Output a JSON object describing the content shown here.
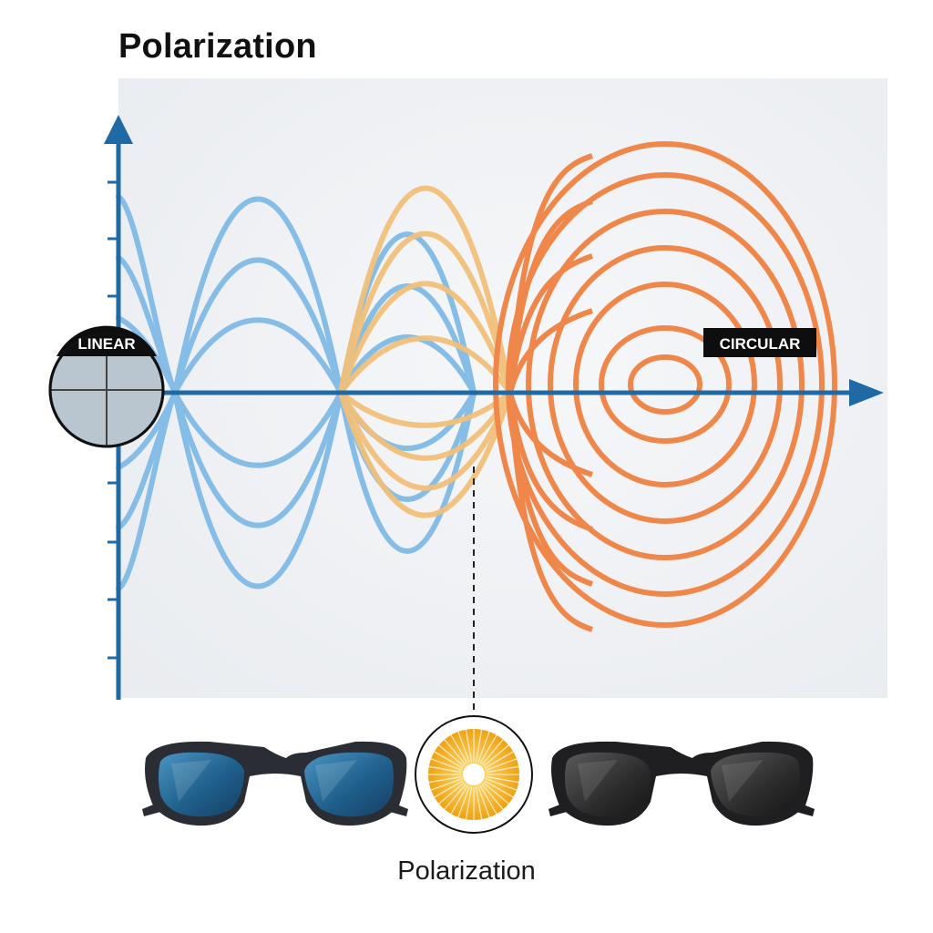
{
  "title": "Polarization",
  "labels": {
    "linear": "LINEAR",
    "circular": "CIRCULAR"
  },
  "caption": "Polarization",
  "colors": {
    "axis": "#1f6aa5",
    "linear_wave": "#86bde6",
    "transition_wave": "#f1c07a",
    "circular_wave": "#f0874a",
    "panel": "#eef0f3",
    "left_lens": "#2c6e96",
    "right_lens": "#333333",
    "sun": "#f2a820"
  },
  "icons": [
    "linear-polarizer-icon",
    "blue-sunglasses-icon",
    "sun-filter-icon",
    "dark-sunglasses-icon"
  ]
}
